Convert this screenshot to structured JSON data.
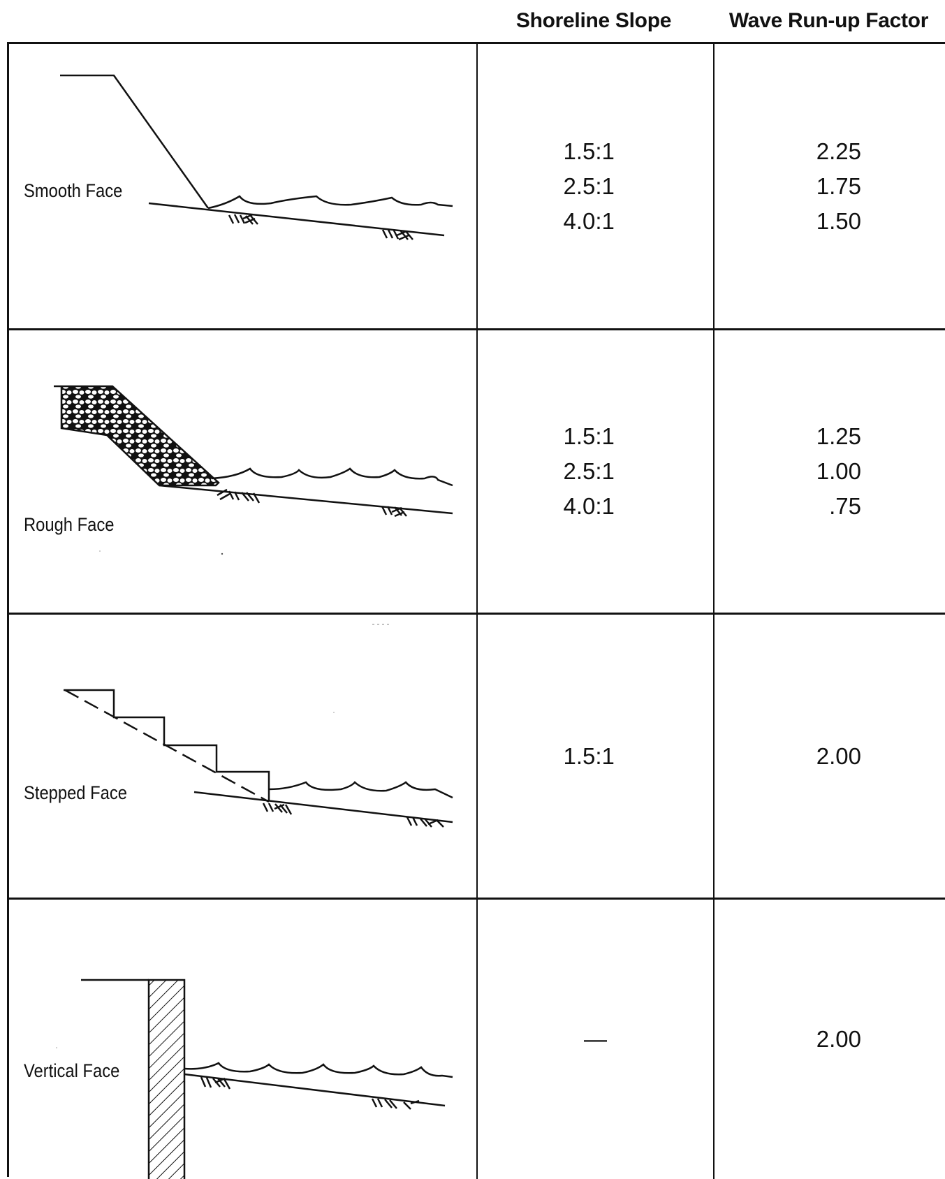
{
  "headers": {
    "slope": "Shoreline Slope",
    "factor": "Wave Run-up Factor"
  },
  "rows": [
    {
      "label": "Smooth Face",
      "slopes": [
        "1.5:1",
        "2.5:1",
        "4.0:1"
      ],
      "factors": [
        "2.25",
        "1.75",
        "1.50"
      ]
    },
    {
      "label": "Rough Face",
      "slopes": [
        "1.5:1",
        "2.5:1",
        "4.0:1"
      ],
      "factors": [
        "1.25",
        "1.00",
        ".75"
      ]
    },
    {
      "label": "Stepped Face",
      "slopes": [
        "1.5:1"
      ],
      "factors": [
        "2.00"
      ]
    },
    {
      "label": "Vertical Face",
      "slopes": [
        "—"
      ],
      "factors": [
        "2.00"
      ]
    }
  ]
}
